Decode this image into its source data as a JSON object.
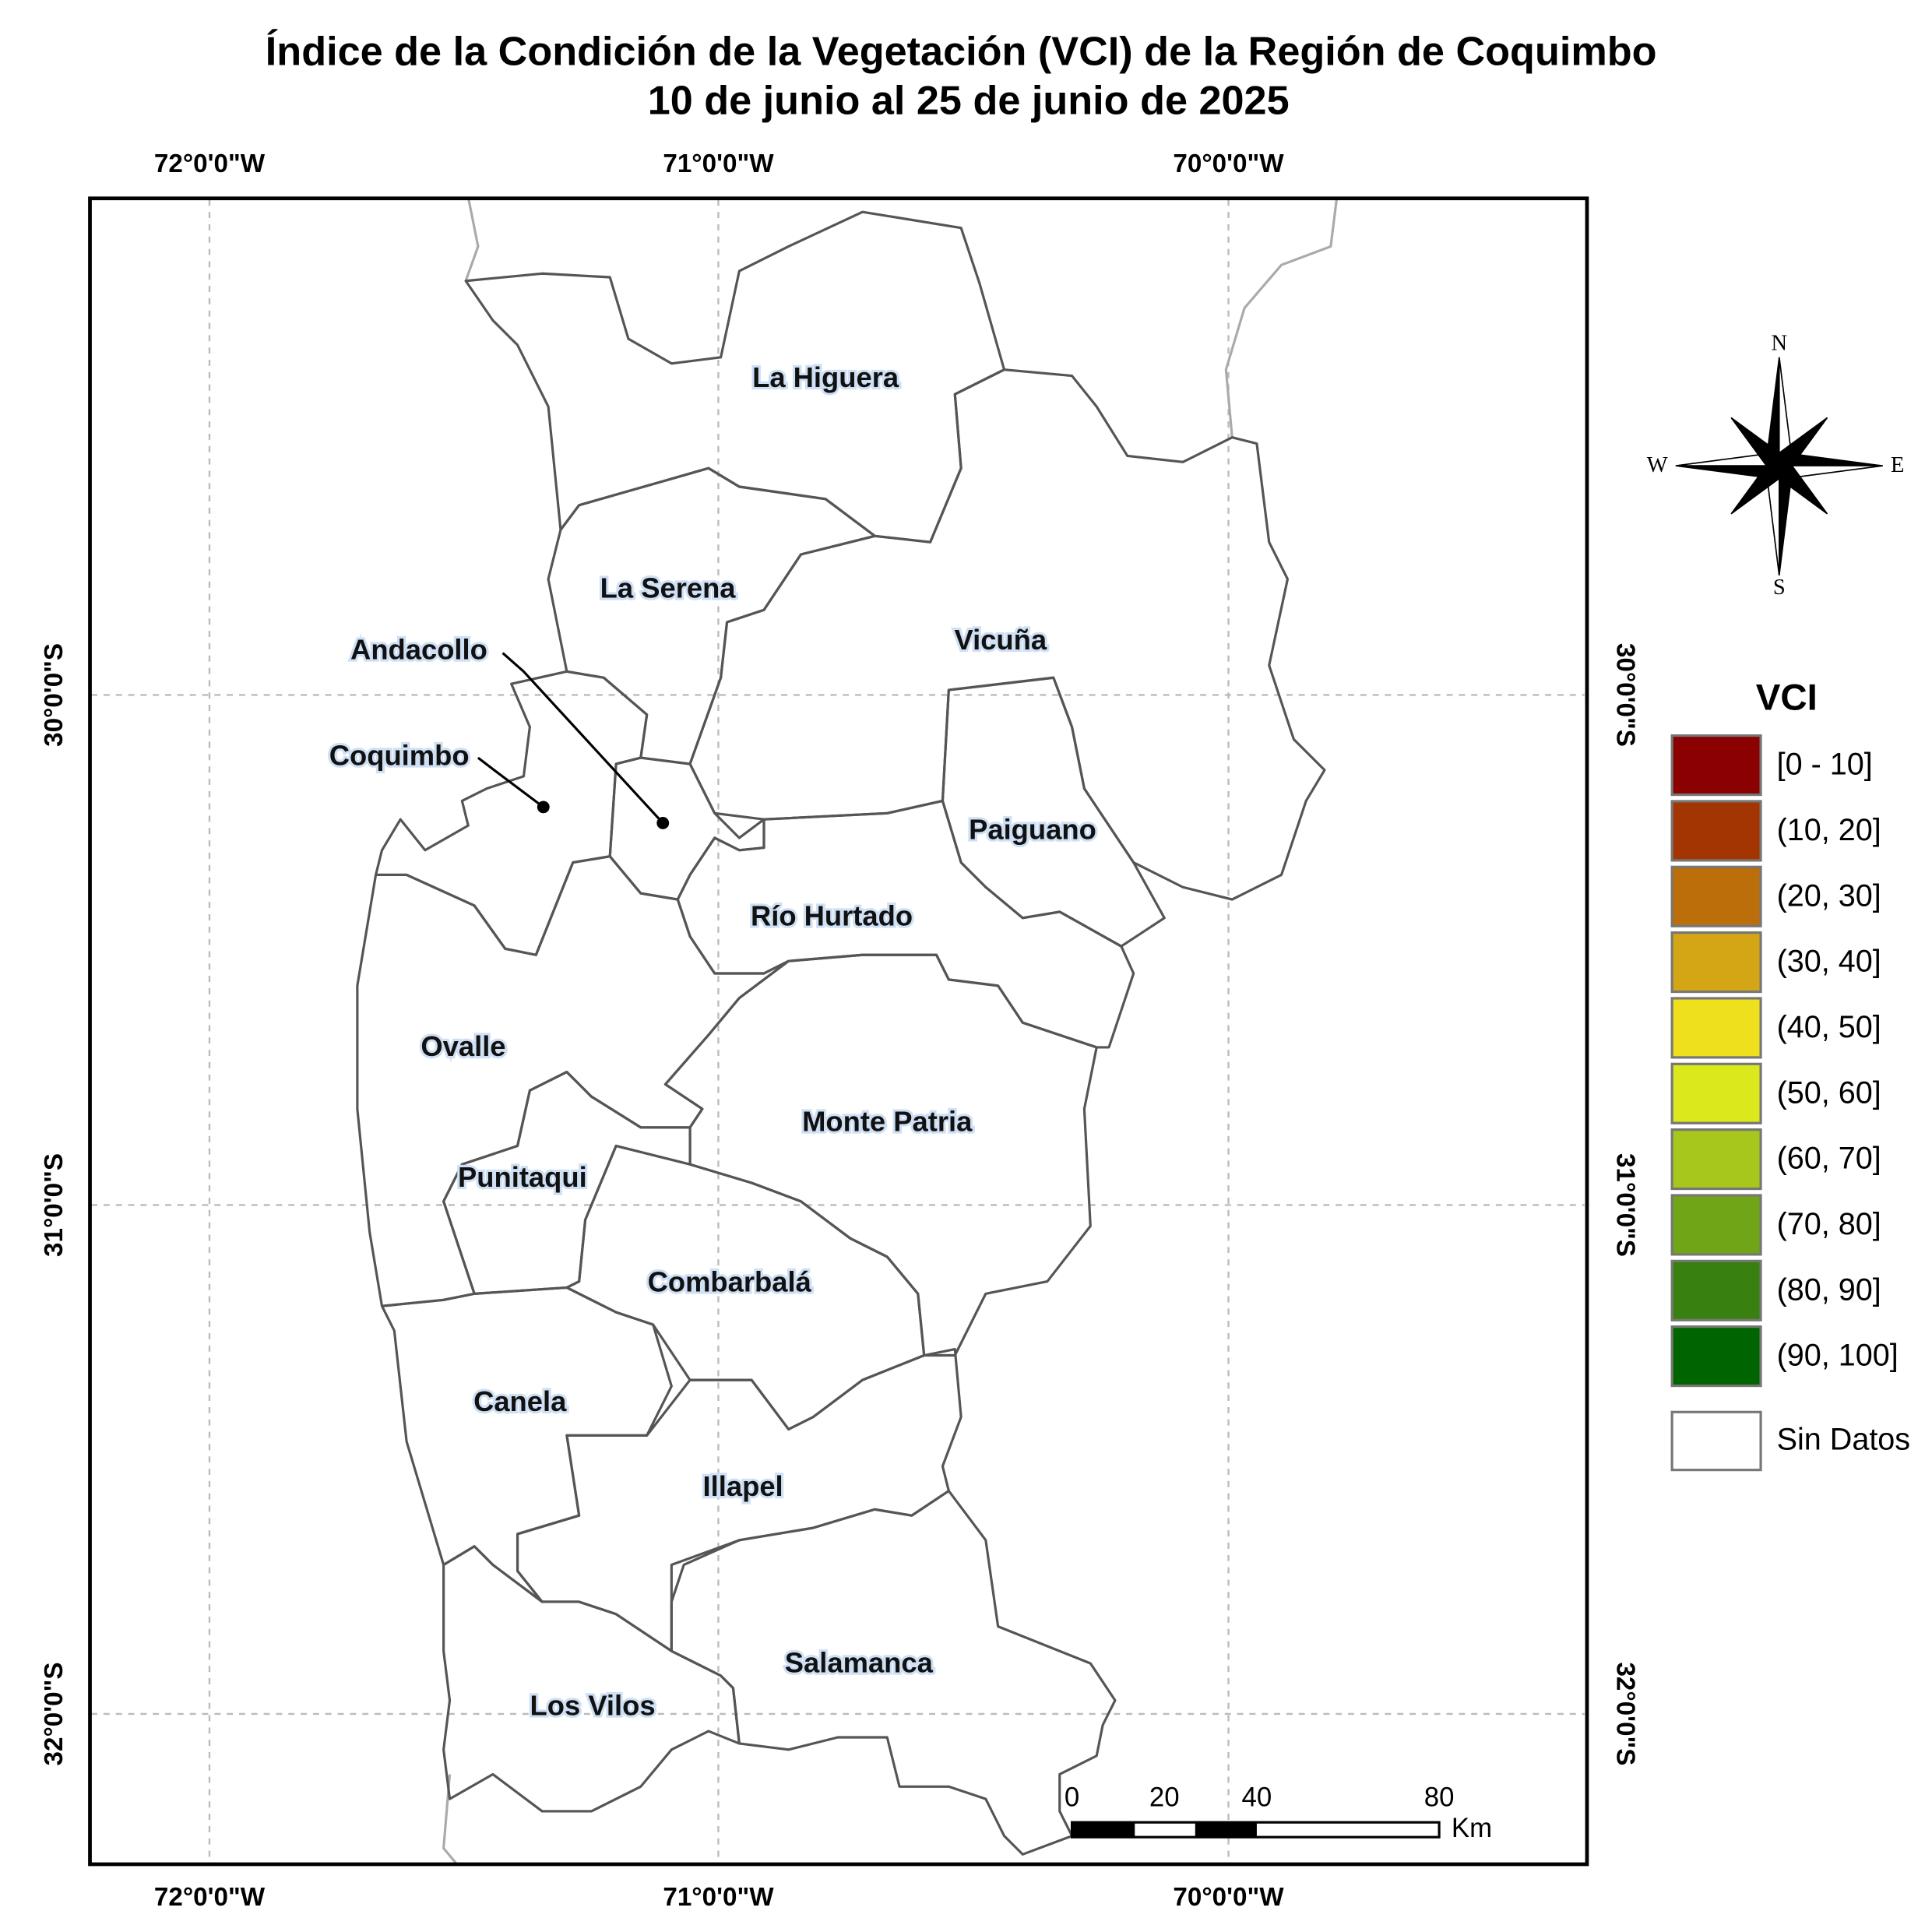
{
  "title": [
    "Índice de la Condición de la Vegetación (VCI) de la Región de Coquimbo",
    "10 de junio al 25 de junio de 2025"
  ],
  "longitude_labels": [
    "72°0'0\"W",
    "71°0'0\"W",
    "70°0'0\"W"
  ],
  "latitude_labels": [
    "30°0'0\"S",
    "31°0'0\"S",
    "32°0'0\"S"
  ],
  "regions": [
    "La Higuera",
    "La Serena",
    "Vicuña",
    "Andacollo",
    "Coquimbo",
    "Paiguano",
    "Río Hurtado",
    "Ovalle",
    "Monte Patria",
    "Punitaqui",
    "Combarbalá",
    "Canela",
    "Illapel",
    "Salamanca",
    "Los Vilos"
  ],
  "compass": [
    "N",
    "S",
    "E",
    "W"
  ],
  "scale_bar": {
    "labels": [
      "0",
      "20",
      "40",
      "80"
    ],
    "unit": "Km"
  },
  "legend": {
    "title": "VCI",
    "items": [
      "[0 - 10]",
      "(10, 20]",
      "(20, 30]",
      "(30, 40]",
      "(40, 50]",
      "(50, 60]",
      "(60, 70]",
      "(70, 80]",
      "(80, 90]",
      "(90, 100]"
    ],
    "no_data": "Sin Datos"
  }
}
